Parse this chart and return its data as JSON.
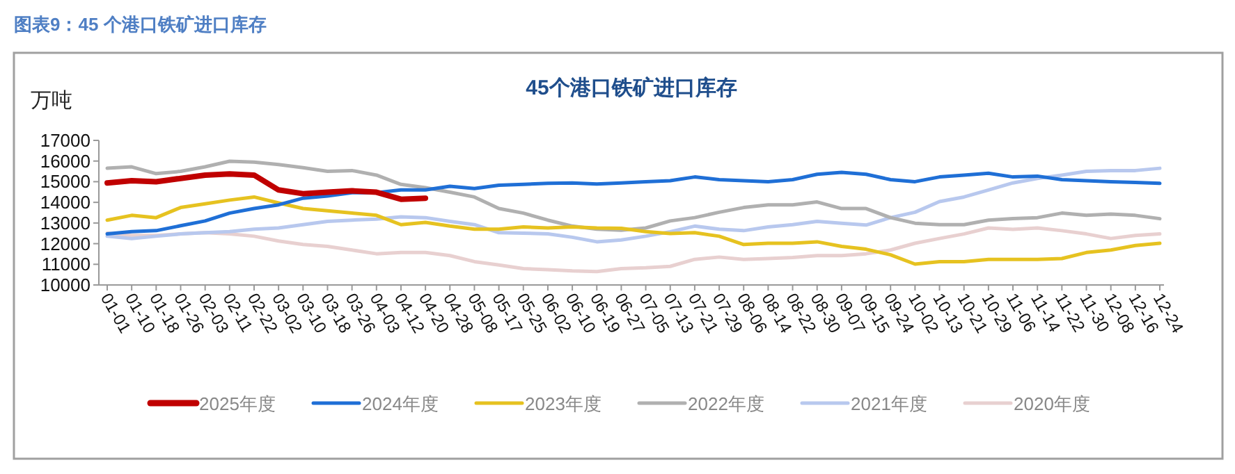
{
  "chart_data": {
    "type": "line",
    "title": "45个港口铁矿进口库存",
    "ylabel": "万吨",
    "annotations": [
      "图表9：45 个港口铁矿进口库存"
    ],
    "categories": [
      "01-01",
      "01-10",
      "01-18",
      "01-26",
      "02-03",
      "02-11",
      "02-22",
      "03-02",
      "03-10",
      "03-18",
      "03-26",
      "04-03",
      "04-12",
      "04-20",
      "04-28",
      "05-08",
      "05-17",
      "05-25",
      "06-02",
      "06-10",
      "06-19",
      "06-27",
      "07-05",
      "07-13",
      "07-21",
      "07-29",
      "08-06",
      "08-14",
      "08-22",
      "08-30",
      "09-07",
      "09-15",
      "09-24",
      "10-02",
      "10-13",
      "10-21",
      "10-29",
      "11-06",
      "11-14",
      "11-22",
      "11-30",
      "12-08",
      "12-16",
      "12-24"
    ],
    "ylim": [
      10000,
      17000
    ],
    "yticks": [
      10000,
      11000,
      12000,
      13000,
      14000,
      15000,
      16000,
      17000
    ],
    "legend": "bottom",
    "series": [
      {
        "name": "2025年度",
        "color": "#c00000",
        "values": [
          14940,
          15050,
          15000,
          15160,
          15320,
          15380,
          15320,
          14600,
          14420,
          14490,
          14560,
          14490,
          14150,
          14200,
          null,
          null,
          null,
          null,
          null,
          null,
          null,
          null,
          null,
          null,
          null,
          null,
          null,
          null,
          null,
          null,
          null,
          null,
          null,
          null,
          null,
          null,
          null,
          null,
          null,
          null,
          null,
          null,
          null,
          null
        ]
      },
      {
        "name": "2024年度",
        "color": "#1f6fd6",
        "values": [
          12470,
          12580,
          12630,
          12870,
          13100,
          13480,
          13700,
          13880,
          14200,
          14310,
          14470,
          14470,
          14600,
          14600,
          14780,
          14670,
          14830,
          14870,
          14920,
          14940,
          14890,
          14940,
          15000,
          15050,
          15230,
          15100,
          15050,
          15000,
          15100,
          15360,
          15450,
          15360,
          15100,
          15000,
          15230,
          15320,
          15410,
          15230,
          15270,
          15100,
          15050,
          15000,
          14960,
          14920
        ]
      },
      {
        "name": "2023年度",
        "color": "#e6c220",
        "values": [
          13140,
          13370,
          13260,
          13750,
          13930,
          14110,
          14260,
          13970,
          13700,
          13590,
          13480,
          13370,
          12920,
          13030,
          12850,
          12700,
          12700,
          12810,
          12760,
          12810,
          12760,
          12740,
          12580,
          12490,
          12530,
          12360,
          11960,
          12020,
          12020,
          12090,
          11870,
          11730,
          11460,
          11010,
          11130,
          11130,
          11240,
          11240,
          11240,
          11280,
          11570,
          11690,
          11910,
          12020
        ]
      },
      {
        "name": "2022年度",
        "color": "#b0b0b0",
        "values": [
          15650,
          15720,
          15390,
          15500,
          15720,
          15990,
          15950,
          15830,
          15680,
          15500,
          15540,
          15320,
          14870,
          14710,
          14490,
          14260,
          13700,
          13480,
          13140,
          12850,
          12700,
          12650,
          12760,
          13100,
          13260,
          13520,
          13750,
          13880,
          13880,
          14020,
          13700,
          13700,
          13260,
          12990,
          12920,
          12920,
          13140,
          13210,
          13260,
          13480,
          13370,
          13430,
          13370,
          13210
        ]
      },
      {
        "name": "2021年度",
        "color": "#b8c8ee",
        "values": [
          12360,
          12250,
          12360,
          12470,
          12530,
          12580,
          12700,
          12760,
          12920,
          13080,
          13140,
          13190,
          13300,
          13260,
          13080,
          12920,
          12530,
          12510,
          12470,
          12310,
          12090,
          12180,
          12360,
          12580,
          12850,
          12700,
          12630,
          12810,
          12920,
          13080,
          12990,
          12900,
          13260,
          13520,
          14040,
          14260,
          14600,
          14940,
          15160,
          15320,
          15500,
          15540,
          15540,
          15650
        ]
      },
      {
        "name": "2020年度",
        "color": "#e8d0d0",
        "values": [
          12510,
          12400,
          12400,
          12470,
          12530,
          12470,
          12360,
          12130,
          11960,
          11870,
          11690,
          11510,
          11570,
          11570,
          11420,
          11130,
          10970,
          10790,
          10740,
          10680,
          10650,
          10790,
          10830,
          10900,
          11240,
          11350,
          11240,
          11280,
          11330,
          11420,
          11420,
          11510,
          11690,
          12020,
          12250,
          12470,
          12760,
          12690,
          12760,
          12630,
          12470,
          12250,
          12400,
          12470
        ]
      }
    ]
  }
}
